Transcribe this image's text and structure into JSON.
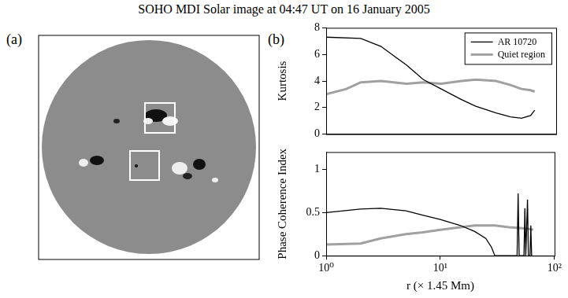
{
  "title": "SOHO MDI Solar image at 04:47 UT on 16 January 2005",
  "panel_labels": [
    "(a)",
    "(b)"
  ],
  "chart_data": [
    {
      "type": "line",
      "ylabel": "Kurtosis",
      "log": "x",
      "grid": false,
      "legend": "upper right",
      "tick_labels": "y",
      "xlim": [
        1,
        100
      ],
      "xticks": [
        {
          "value": 1,
          "label": "10⁰"
        },
        {
          "value": 10,
          "label": "10¹"
        },
        {
          "value": 100,
          "label": "10²"
        }
      ],
      "ylim": [
        0,
        8
      ],
      "yticks": [
        0,
        2,
        4,
        6,
        8
      ],
      "series": [
        {
          "name": "AR 10720",
          "color": "#000000",
          "x": [
            1,
            2,
            3,
            4,
            5,
            7,
            10,
            15,
            20,
            30,
            40,
            50,
            60,
            65
          ],
          "values": [
            7.3,
            7.2,
            6.6,
            5.8,
            5.2,
            4.1,
            3.4,
            2.6,
            2.1,
            1.6,
            1.3,
            1.2,
            1.4,
            1.8
          ]
        },
        {
          "name": "Quiet region",
          "color": "#a0a0a0",
          "x": [
            1,
            1.5,
            2,
            3,
            5,
            7,
            10,
            15,
            20,
            30,
            40,
            50,
            60,
            65
          ],
          "values": [
            3.0,
            3.4,
            3.9,
            4.0,
            3.8,
            3.9,
            3.8,
            4.0,
            4.1,
            4.0,
            3.7,
            3.4,
            3.3,
            3.2
          ]
        }
      ]
    },
    {
      "type": "line",
      "xlabel": "r (× 1.45 Mm)",
      "ylabel": "Phase Coherence Index",
      "log": "x",
      "grid": false,
      "xlim": [
        1,
        100
      ],
      "xticks": [
        {
          "value": 1,
          "label": "10⁰"
        },
        {
          "value": 10,
          "label": "10¹"
        },
        {
          "value": 100,
          "label": "10²"
        }
      ],
      "ylim": [
        0,
        1.2
      ],
      "yticks": [
        0,
        0.5,
        1
      ],
      "series": [
        {
          "name": "AR 10720",
          "color": "#000000",
          "x": [
            1,
            2,
            3,
            5,
            7,
            10,
            15,
            20,
            25,
            28,
            30,
            47,
            48,
            49,
            54,
            55,
            56,
            58,
            59,
            61,
            62,
            63
          ],
          "values": [
            0.5,
            0.54,
            0.55,
            0.52,
            0.47,
            0.42,
            0.35,
            0.28,
            0.2,
            0.1,
            0,
            0,
            0.72,
            0,
            0,
            0.55,
            0,
            0.65,
            0,
            0,
            0.35,
            0
          ]
        },
        {
          "name": "Quiet region",
          "color": "#a0a0a0",
          "x": [
            1,
            2,
            3,
            5,
            7,
            10,
            15,
            20,
            30,
            40,
            50,
            60,
            65
          ],
          "values": [
            0.13,
            0.14,
            0.2,
            0.25,
            0.27,
            0.3,
            0.33,
            0.35,
            0.35,
            0.33,
            0.32,
            0.31,
            0.3
          ]
        }
      ]
    }
  ]
}
